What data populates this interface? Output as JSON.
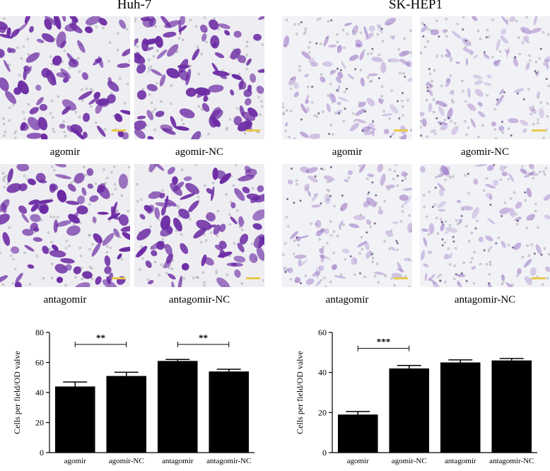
{
  "panels": {
    "left_title": "Huh-7",
    "right_title": "SK-HEP1"
  },
  "images": {
    "huh7": [
      {
        "label": "agomir",
        "stain": "dense",
        "color": "#6b2aa3"
      },
      {
        "label": "agomir-NC",
        "stain": "dense",
        "color": "#6b2aa3"
      },
      {
        "label": "antagomir",
        "stain": "dense",
        "color": "#6b2aa3"
      },
      {
        "label": "antagomir-NC",
        "stain": "dense",
        "color": "#6b2aa3"
      }
    ],
    "skhep1": [
      {
        "label": "agomir",
        "stain": "sparse",
        "color": "#9a72c4"
      },
      {
        "label": "agomir-NC",
        "stain": "sparse",
        "color": "#9a72c4"
      },
      {
        "label": "antagomir",
        "stain": "sparse",
        "color": "#9a72c4"
      },
      {
        "label": "antagomir-NC",
        "stain": "sparse",
        "color": "#9a72c4"
      }
    ]
  },
  "chart_data": [
    {
      "type": "bar",
      "title": "",
      "categories": [
        "agomir",
        "agomir-NC",
        "antagomir",
        "antagomir-NC"
      ],
      "values": [
        44,
        51,
        61,
        54
      ],
      "errors": [
        3,
        2.5,
        1,
        1.5
      ],
      "ylabel": "Cells per field/OD valve",
      "xlabel": "",
      "ylim": [
        0,
        80
      ],
      "yticks": [
        0,
        20,
        40,
        60,
        80
      ],
      "significance": [
        {
          "from": 0,
          "to": 1,
          "label": "**",
          "y": 72
        },
        {
          "from": 2,
          "to": 3,
          "label": "**",
          "y": 72
        }
      ],
      "bar_color": "#000000",
      "grid": false
    },
    {
      "type": "bar",
      "title": "",
      "categories": [
        "agomir",
        "agomir-NC",
        "antagomir",
        "antagomir-NC"
      ],
      "values": [
        19,
        42,
        45,
        46
      ],
      "errors": [
        1.5,
        1.5,
        1.3,
        1
      ],
      "ylabel": "Cells per field/OD valve",
      "xlabel": "",
      "ylim": [
        0,
        60
      ],
      "yticks": [
        0,
        20,
        40,
        60
      ],
      "significance": [
        {
          "from": 0,
          "to": 1,
          "label": "***",
          "y": 52
        }
      ],
      "bar_color": "#000000",
      "grid": false
    }
  ]
}
